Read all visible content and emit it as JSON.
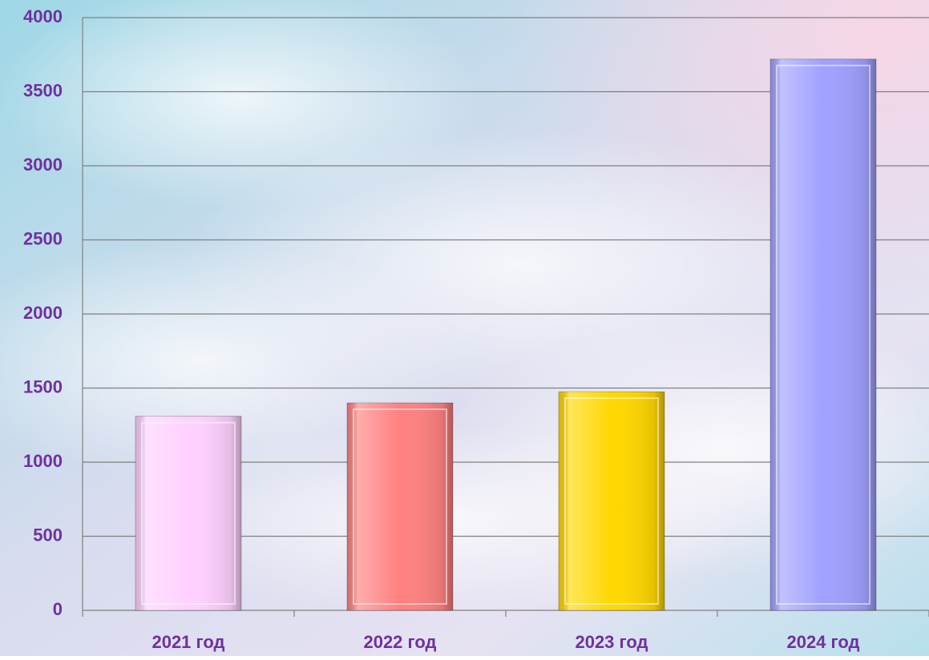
{
  "chart_data": {
    "type": "bar",
    "categories": [
      "2021 год",
      "2022 год",
      "2023 год",
      "2024 год"
    ],
    "values": [
      1310,
      1400,
      1475,
      3720
    ],
    "colors": [
      "#ffd0ff",
      "#ff8080",
      "#ffd700",
      "#a0a0ff"
    ],
    "ylim": [
      0,
      4000
    ],
    "yticks": [
      0,
      500,
      1000,
      1500,
      2000,
      2500,
      3000,
      3500,
      4000
    ],
    "grid": true
  }
}
